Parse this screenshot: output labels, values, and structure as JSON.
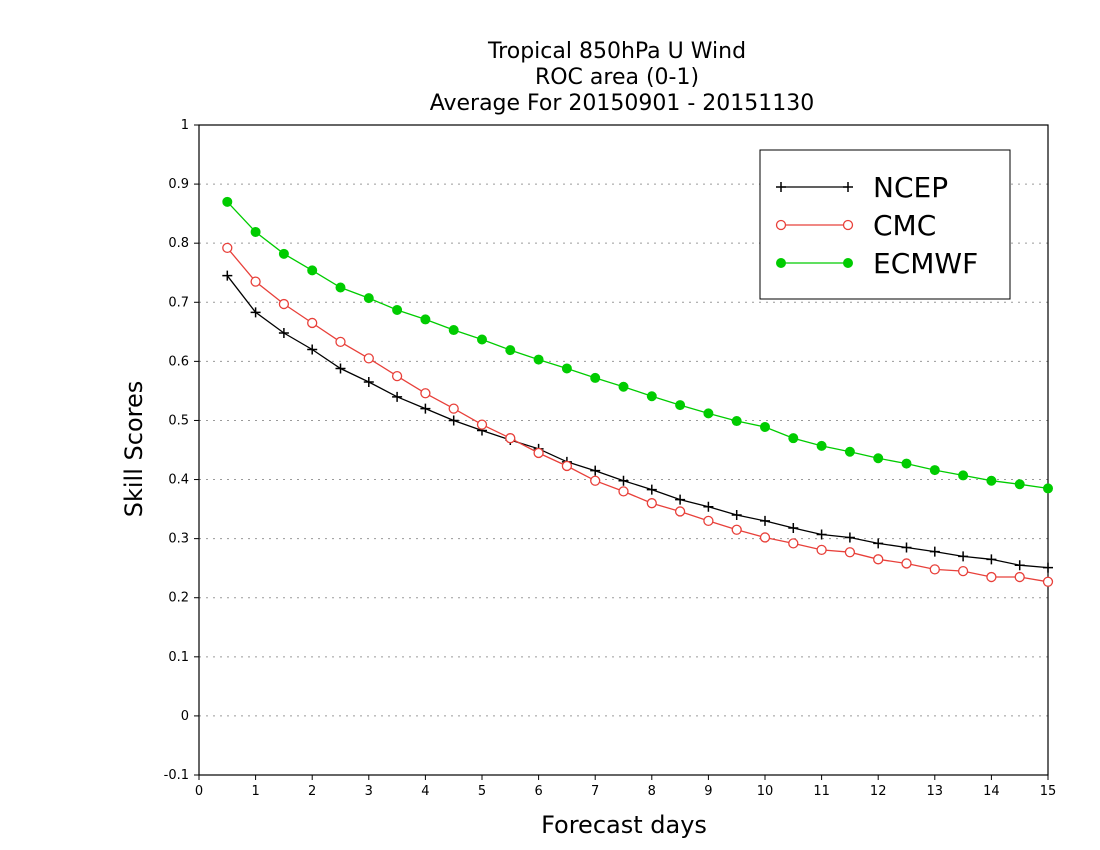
{
  "chart_data": {
    "type": "line",
    "title_lines": [
      "Tropical 850hPa U Wind",
      "ROC area (0-1)",
      "Average For 20150901 - 20151130"
    ],
    "xlabel": "Forecast days",
    "ylabel": "Skill Scores",
    "xlim": [
      0,
      15
    ],
    "ylim": [
      -0.1,
      1
    ],
    "x_ticks": [
      "0",
      "1",
      "2",
      "3",
      "4",
      "5",
      "6",
      "7",
      "8",
      "9",
      "10",
      "11",
      "12",
      "13",
      "14",
      "15"
    ],
    "y_ticks": [
      "-0.1",
      "0",
      "0.1",
      "0.2",
      "0.3",
      "0.4",
      "0.5",
      "0.6",
      "0.7",
      "0.8",
      "0.9",
      "1"
    ],
    "grid": "horizontal dotted",
    "legend_position": "top-right",
    "x": [
      0.5,
      1,
      1.5,
      2,
      2.5,
      3,
      3.5,
      4,
      4.5,
      5,
      5.5,
      6,
      6.5,
      7,
      7.5,
      8,
      8.5,
      9,
      9.5,
      10,
      10.5,
      11,
      11.5,
      12,
      12.5,
      13,
      13.5,
      14,
      14.5,
      15
    ],
    "series": [
      {
        "name": "NCEP",
        "color": "#000000",
        "marker": "plus",
        "values": [
          0.745,
          0.683,
          0.648,
          0.62,
          0.588,
          0.565,
          0.54,
          0.52,
          0.5,
          0.483,
          0.467,
          0.452,
          0.43,
          0.415,
          0.398,
          0.383,
          0.366,
          0.354,
          0.34,
          0.33,
          0.318,
          0.307,
          0.302,
          0.292,
          0.285,
          0.278,
          0.27,
          0.265,
          0.255,
          0.251
        ]
      },
      {
        "name": "CMC",
        "color": "#e8403a",
        "marker": "open-circle",
        "values": [
          0.792,
          0.735,
          0.697,
          0.665,
          0.633,
          0.605,
          0.575,
          0.546,
          0.52,
          0.493,
          0.47,
          0.445,
          0.423,
          0.398,
          0.38,
          0.36,
          0.346,
          0.33,
          0.315,
          0.302,
          0.292,
          0.281,
          0.277,
          0.265,
          0.258,
          0.248,
          0.245,
          0.235,
          0.235,
          0.227
        ]
      },
      {
        "name": "ECMWF",
        "color": "#00cc00",
        "marker": "filled-circle",
        "values": [
          0.87,
          0.819,
          0.782,
          0.754,
          0.725,
          0.707,
          0.687,
          0.671,
          0.653,
          0.637,
          0.619,
          0.603,
          0.588,
          0.572,
          0.557,
          0.541,
          0.526,
          0.512,
          0.499,
          0.489,
          0.47,
          0.457,
          0.447,
          0.436,
          0.427,
          0.416,
          0.407,
          0.398,
          0.392,
          0.385
        ]
      }
    ]
  }
}
